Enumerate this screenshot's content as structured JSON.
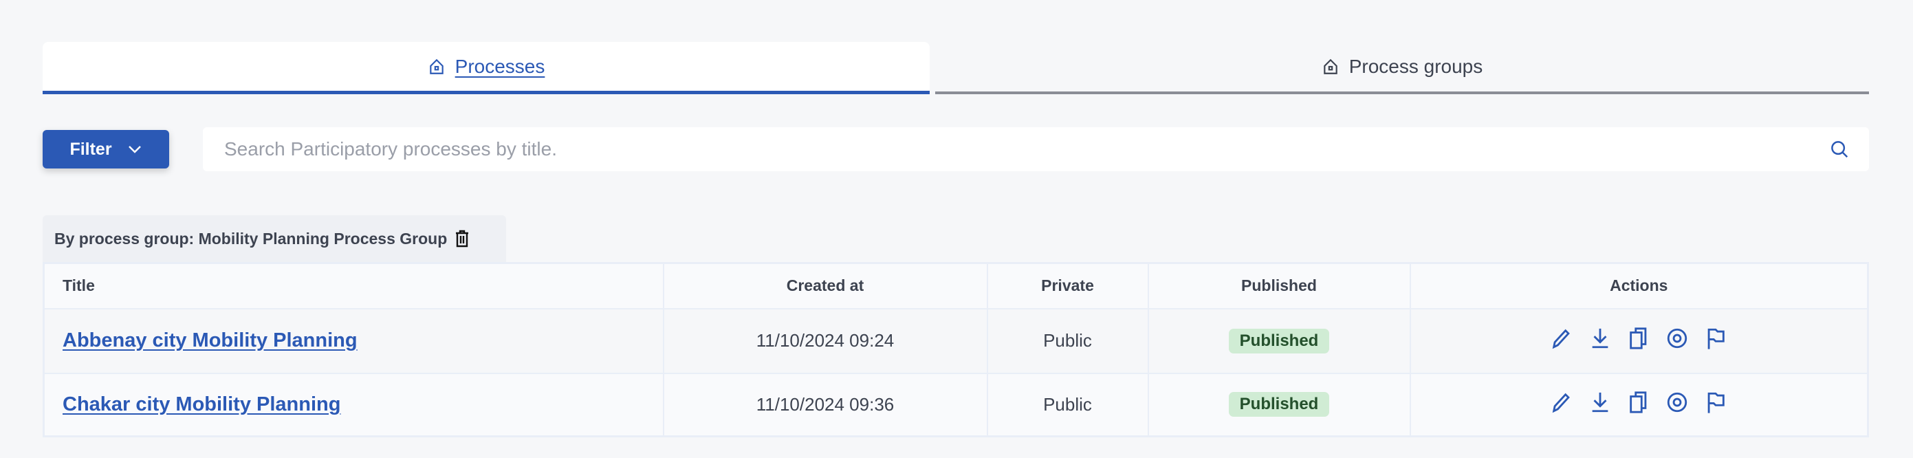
{
  "tabs": [
    {
      "label": "Processes",
      "icon": "home-icon",
      "active": true
    },
    {
      "label": "Process groups",
      "icon": "home-icon",
      "active": false
    }
  ],
  "toolbar": {
    "filter_label": "Filter",
    "search_placeholder": "Search Participatory processes by title."
  },
  "active_filter": {
    "label": "By process group: Mobility Planning Process Group"
  },
  "table": {
    "columns": [
      "Title",
      "Created at",
      "Private",
      "Published",
      "Actions"
    ],
    "rows": [
      {
        "title": "Abbenay city Mobility Planning",
        "created_at": "11/10/2024 09:24",
        "private": "Public",
        "published": "Published"
      },
      {
        "title": "Chakar city Mobility Planning",
        "created_at": "11/10/2024 09:36",
        "private": "Public",
        "published": "Published"
      }
    ],
    "actions": [
      "pencil-icon",
      "download-icon",
      "copy-icon",
      "eye-icon",
      "flag-icon"
    ]
  },
  "colors": {
    "accent": "#2b59b5",
    "badge_bg": "#d0ecd4",
    "badge_text": "#24502c"
  }
}
